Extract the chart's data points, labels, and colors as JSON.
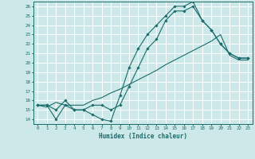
{
  "title": "",
  "xlabel": "Humidex (Indice chaleur)",
  "bg_color": "#cce8e8",
  "grid_color": "#ffffff",
  "line_color": "#1a6b6b",
  "xlim": [
    -0.5,
    23.5
  ],
  "ylim": [
    13.5,
    26.5
  ],
  "yticks": [
    14,
    15,
    16,
    17,
    18,
    19,
    20,
    21,
    22,
    23,
    24,
    25,
    26
  ],
  "xticks": [
    0,
    1,
    2,
    3,
    4,
    5,
    6,
    7,
    8,
    9,
    10,
    11,
    12,
    13,
    14,
    15,
    16,
    17,
    18,
    19,
    20,
    21,
    22,
    23
  ],
  "line1_x": [
    0,
    1,
    2,
    3,
    4,
    5,
    6,
    7,
    8,
    9,
    10,
    11,
    12,
    13,
    14,
    15,
    16,
    17,
    18,
    19,
    20,
    21,
    22,
    23
  ],
  "line1_y": [
    15.5,
    15.5,
    14.0,
    15.5,
    15.0,
    15.0,
    14.5,
    14.0,
    13.8,
    16.5,
    19.5,
    21.5,
    23.0,
    24.0,
    25.0,
    26.0,
    26.0,
    26.5,
    24.5,
    23.5,
    22.0,
    21.0,
    20.5,
    20.5
  ],
  "line2_x": [
    0,
    1,
    2,
    3,
    4,
    5,
    6,
    7,
    8,
    9,
    10,
    11,
    12,
    13,
    14,
    15,
    16,
    17,
    18,
    19,
    20,
    21,
    22,
    23
  ],
  "line2_y": [
    15.5,
    15.3,
    15.8,
    15.5,
    15.5,
    15.5,
    16.0,
    16.3,
    16.8,
    17.2,
    17.7,
    18.2,
    18.7,
    19.2,
    19.8,
    20.3,
    20.8,
    21.3,
    21.8,
    22.3,
    23.0,
    20.8,
    20.3,
    20.3
  ],
  "line3_x": [
    0,
    1,
    2,
    3,
    4,
    5,
    6,
    7,
    8,
    9,
    10,
    11,
    12,
    13,
    14,
    15,
    16,
    17,
    18,
    19,
    20,
    21,
    22,
    23
  ],
  "line3_y": [
    15.5,
    15.5,
    15.0,
    16.0,
    15.0,
    15.0,
    15.5,
    15.5,
    15.0,
    15.5,
    17.5,
    19.5,
    21.5,
    22.5,
    24.5,
    25.5,
    25.5,
    26.0,
    24.5,
    23.5,
    22.0,
    21.0,
    20.5,
    20.5
  ],
  "marker_size": 1.8,
  "line_width": 0.8,
  "tick_fontsize": 4.2,
  "xlabel_fontsize": 5.5
}
